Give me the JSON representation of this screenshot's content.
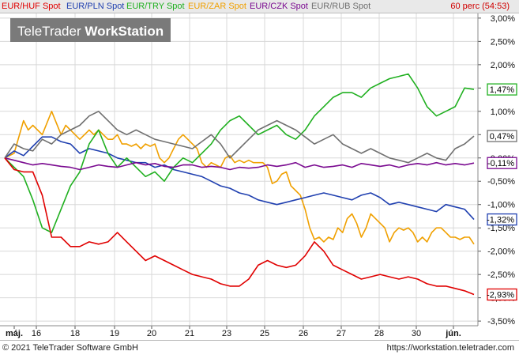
{
  "header": {
    "legend": [
      {
        "label": "EUR/HUF Spot",
        "color": "#e00000"
      },
      {
        "label": "EUR/PLN Spot",
        "color": "#2040b0"
      },
      {
        "label": "EUR/TRY Spot",
        "color": "#20b020"
      },
      {
        "label": "EUR/ZAR Spot",
        "color": "#f0a000"
      },
      {
        "label": "EUR/CZK Spot",
        "color": "#7a0a90"
      },
      {
        "label": "EUR/RUB Spot",
        "color": "#707070"
      }
    ],
    "period": "60 perc (54:53)"
  },
  "watermark": {
    "part1": "TeleTrader ",
    "part2": "WorkStation"
  },
  "footer": {
    "copyright": "© 2021 TeleTrader Software GmbH",
    "website": "https://workstation.teletrader.com"
  },
  "chart_data": {
    "type": "line",
    "x_tick_labels": [
      "máj.",
      "16",
      "18",
      "19",
      "20",
      "21",
      "23",
      "25",
      "26",
      "27",
      "28",
      "30",
      "jún."
    ],
    "y_tick_labels": [
      "3,00%",
      "2,50%",
      "2,00%",
      "1,50%",
      "1,00%",
      "0,50%",
      "0,00%",
      "-0,50%",
      "-1,00%",
      "-1,50%",
      "-2,00%",
      "-2,50%",
      "-3,00%",
      "-3,50%"
    ],
    "ylim": [
      -3.6,
      3.1
    ],
    "grid": true,
    "legend_position": "top",
    "series": [
      {
        "name": "EUR/ZAR Spot",
        "color": "#f0a000",
        "last_label": "",
        "x": [
          0,
          2,
          4,
          5,
          6,
          8,
          10,
          12,
          13,
          14,
          16,
          18,
          19,
          20,
          21,
          22,
          23,
          24,
          25,
          26,
          27,
          28,
          29,
          30,
          31,
          32,
          33,
          34,
          35,
          36,
          37,
          38,
          39,
          40,
          41,
          42,
          43,
          44,
          45,
          46,
          47,
          48,
          49,
          50,
          51,
          52,
          53,
          54,
          55,
          56,
          57,
          58,
          59,
          60,
          61,
          62,
          63,
          64,
          65,
          66,
          67,
          68,
          69,
          70,
          71,
          72,
          73,
          74,
          75,
          76,
          77,
          78,
          79,
          80,
          81,
          82,
          83,
          84,
          85,
          86,
          87,
          88,
          89,
          90,
          91,
          92,
          93,
          94,
          95,
          96,
          97,
          98,
          99,
          100
        ],
        "y": [
          0.0,
          0.1,
          0.8,
          0.6,
          0.7,
          0.5,
          1.0,
          0.5,
          0.7,
          0.6,
          0.4,
          0.6,
          0.5,
          0.6,
          0.5,
          0.4,
          0.4,
          0.5,
          0.3,
          0.3,
          0.25,
          0.3,
          0.2,
          0.3,
          0.25,
          0.3,
          0.0,
          -0.1,
          0.0,
          0.2,
          0.4,
          0.5,
          0.4,
          0.3,
          0.2,
          -0.1,
          -0.2,
          -0.1,
          -0.15,
          -0.2,
          0.0,
          0.05,
          -0.1,
          -0.05,
          -0.1,
          -0.05,
          -0.1,
          -0.1,
          -0.1,
          -0.2,
          -0.55,
          -0.5,
          -0.35,
          -0.3,
          -0.6,
          -0.7,
          -0.8,
          -1.1,
          -1.5,
          -1.75,
          -1.7,
          -1.8,
          -1.7,
          -1.75,
          -1.5,
          -1.6,
          -1.3,
          -1.2,
          -1.4,
          -1.7,
          -1.5,
          -1.2,
          -1.3,
          -1.4,
          -1.5,
          -1.8,
          -1.6,
          -1.5,
          -1.55,
          -1.5,
          -1.6,
          -1.8,
          -1.7,
          -1.8,
          -1.6,
          -1.5,
          -1.5,
          -1.6,
          -1.7,
          -1.7,
          -1.75,
          -1.7,
          -1.7,
          -1.85
        ]
      },
      {
        "name": "EUR/PLN Spot",
        "color": "#2040b0",
        "last_label": "-1,32%",
        "x": [
          0,
          2,
          4,
          6,
          8,
          10,
          12,
          14,
          16,
          18,
          20,
          22,
          24,
          26,
          28,
          30,
          32,
          34,
          36,
          38,
          40,
          42,
          44,
          46,
          48,
          50,
          52,
          54,
          56,
          58,
          60,
          62,
          64,
          66,
          68,
          70,
          72,
          74,
          76,
          78,
          80,
          82,
          84,
          86,
          88,
          90,
          92,
          94,
          96,
          98,
          100
        ],
        "y": [
          0.0,
          0.15,
          0.05,
          0.25,
          0.45,
          0.45,
          0.35,
          0.3,
          0.1,
          0.2,
          0.15,
          0.1,
          0.0,
          -0.05,
          -0.1,
          -0.1,
          -0.2,
          -0.15,
          -0.25,
          -0.3,
          -0.35,
          -0.4,
          -0.5,
          -0.6,
          -0.65,
          -0.75,
          -0.8,
          -0.9,
          -0.95,
          -1.0,
          -0.95,
          -0.9,
          -0.85,
          -0.8,
          -0.75,
          -0.8,
          -0.85,
          -0.9,
          -0.8,
          -0.75,
          -0.85,
          -1.0,
          -0.95,
          -1.0,
          -1.05,
          -1.1,
          -1.15,
          -1.0,
          -1.05,
          -1.1,
          -1.32
        ]
      },
      {
        "name": "EUR/TRY Spot",
        "color": "#20b020",
        "last_label": "1,47%",
        "x": [
          0,
          2,
          4,
          6,
          8,
          10,
          12,
          14,
          16,
          18,
          20,
          22,
          24,
          26,
          28,
          30,
          32,
          34,
          36,
          38,
          40,
          42,
          44,
          46,
          48,
          50,
          52,
          54,
          56,
          58,
          60,
          62,
          64,
          66,
          68,
          70,
          72,
          74,
          76,
          78,
          80,
          82,
          84,
          86,
          88,
          90,
          92,
          94,
          96,
          98,
          100
        ],
        "y": [
          0.0,
          -0.2,
          -0.4,
          -0.9,
          -1.5,
          -1.6,
          -1.1,
          -0.6,
          -0.3,
          0.3,
          0.6,
          0.1,
          -0.2,
          0.0,
          -0.2,
          -0.4,
          -0.3,
          -0.5,
          -0.2,
          0.0,
          -0.1,
          0.1,
          0.3,
          0.6,
          0.8,
          0.9,
          0.7,
          0.5,
          0.6,
          0.7,
          0.5,
          0.4,
          0.6,
          0.9,
          1.1,
          1.3,
          1.4,
          1.4,
          1.3,
          1.5,
          1.6,
          1.7,
          1.75,
          1.8,
          1.5,
          1.1,
          0.9,
          1.0,
          1.1,
          1.5,
          1.47
        ]
      },
      {
        "name": "EUR/CZK Spot",
        "color": "#7a0a90",
        "last_label": "-0,11%",
        "x": [
          0,
          2,
          4,
          6,
          8,
          10,
          12,
          14,
          16,
          18,
          20,
          22,
          24,
          26,
          28,
          30,
          32,
          34,
          36,
          38,
          40,
          42,
          44,
          46,
          48,
          50,
          52,
          54,
          56,
          58,
          60,
          62,
          64,
          66,
          68,
          70,
          72,
          74,
          76,
          78,
          80,
          82,
          84,
          86,
          88,
          90,
          92,
          94,
          96,
          98,
          100
        ],
        "y": [
          0.0,
          -0.05,
          -0.1,
          -0.15,
          -0.12,
          -0.15,
          -0.18,
          -0.2,
          -0.25,
          -0.2,
          -0.15,
          -0.18,
          -0.2,
          -0.15,
          -0.1,
          -0.15,
          -0.12,
          -0.18,
          -0.2,
          -0.15,
          -0.15,
          -0.2,
          -0.18,
          -0.2,
          -0.25,
          -0.2,
          -0.22,
          -0.2,
          -0.15,
          -0.18,
          -0.15,
          -0.1,
          -0.2,
          -0.15,
          -0.2,
          -0.18,
          -0.15,
          -0.2,
          -0.12,
          -0.15,
          -0.18,
          -0.15,
          -0.2,
          -0.15,
          -0.12,
          -0.15,
          -0.1,
          -0.15,
          -0.12,
          -0.15,
          -0.11
        ]
      },
      {
        "name": "EUR/RUB Spot",
        "color": "#707070",
        "last_label": "0,47%",
        "x": [
          0,
          2,
          4,
          6,
          8,
          10,
          12,
          14,
          16,
          18,
          20,
          22,
          24,
          26,
          28,
          30,
          32,
          34,
          36,
          38,
          40,
          42,
          44,
          46,
          48,
          50,
          52,
          54,
          56,
          58,
          60,
          62,
          64,
          66,
          68,
          70,
          72,
          74,
          76,
          78,
          80,
          82,
          84,
          86,
          88,
          90,
          92,
          94,
          96,
          98,
          100
        ],
        "y": [
          0.0,
          0.3,
          0.2,
          0.15,
          0.4,
          0.3,
          0.5,
          0.6,
          0.7,
          0.9,
          1.0,
          0.8,
          0.6,
          0.5,
          0.6,
          0.5,
          0.4,
          0.35,
          0.3,
          0.25,
          0.2,
          0.35,
          0.5,
          0.3,
          0.0,
          0.2,
          0.4,
          0.6,
          0.7,
          0.8,
          0.7,
          0.6,
          0.45,
          0.3,
          0.4,
          0.5,
          0.3,
          0.2,
          0.1,
          0.2,
          0.1,
          0.0,
          -0.05,
          -0.1,
          0.0,
          0.1,
          0.0,
          -0.05,
          0.2,
          0.3,
          0.47
        ]
      },
      {
        "name": "EUR/HUF Spot",
        "color": "#e00000",
        "last_label": "-2,93%",
        "x": [
          0,
          2,
          4,
          6,
          8,
          10,
          12,
          14,
          16,
          18,
          20,
          22,
          24,
          26,
          28,
          30,
          32,
          34,
          36,
          38,
          40,
          42,
          44,
          46,
          48,
          50,
          52,
          54,
          56,
          58,
          60,
          62,
          64,
          66,
          68,
          70,
          72,
          74,
          76,
          78,
          80,
          82,
          84,
          86,
          88,
          90,
          92,
          94,
          96,
          98,
          100
        ],
        "y": [
          0.0,
          -0.25,
          -0.3,
          -0.3,
          -0.8,
          -1.7,
          -1.7,
          -1.9,
          -1.9,
          -1.8,
          -1.85,
          -1.8,
          -1.6,
          -1.8,
          -2.0,
          -2.2,
          -2.1,
          -2.2,
          -2.3,
          -2.4,
          -2.5,
          -2.55,
          -2.6,
          -2.7,
          -2.75,
          -2.75,
          -2.6,
          -2.3,
          -2.2,
          -2.3,
          -2.35,
          -2.3,
          -2.1,
          -1.8,
          -2.0,
          -2.3,
          -2.4,
          -2.5,
          -2.6,
          -2.55,
          -2.5,
          -2.55,
          -2.6,
          -2.55,
          -2.6,
          -2.7,
          -2.75,
          -2.75,
          -2.8,
          -2.85,
          -2.93
        ]
      }
    ]
  }
}
